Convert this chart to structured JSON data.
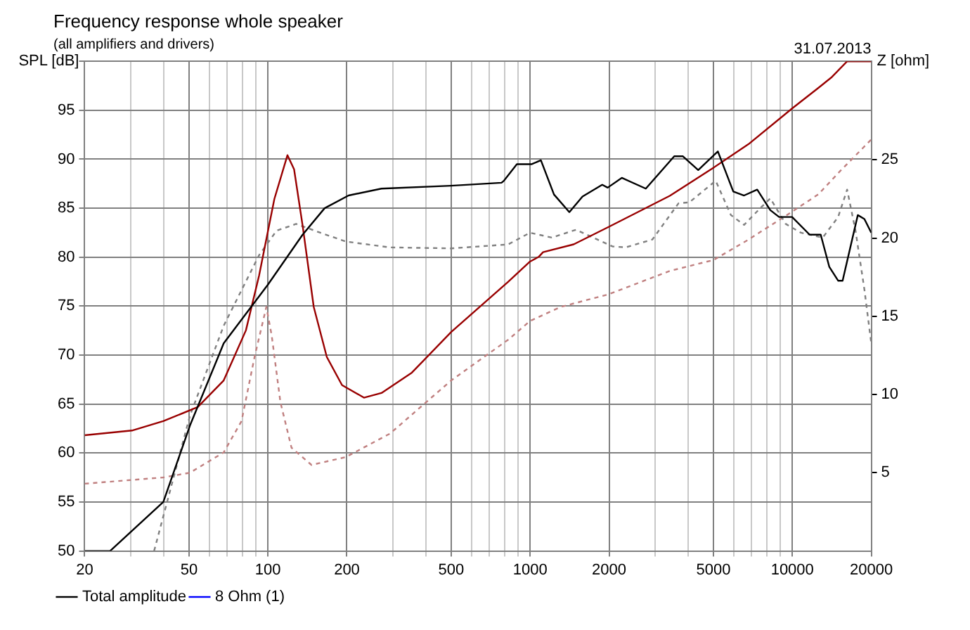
{
  "chart_data": {
    "type": "line",
    "title": "Frequency response whole speaker",
    "subtitle": "(all amplifiers and drivers)",
    "ylabel": "SPL [dB]",
    "y2label": "Z [ohm]",
    "annotations": [
      "31.07.2013"
    ],
    "xlim": [
      20,
      20000
    ],
    "xticks": [
      20,
      {
        "value": 30,
        "label": null
      },
      {
        "value": 40,
        "label": null
      },
      50,
      {
        "value": 60,
        "label": null
      },
      {
        "value": 70,
        "label": null
      },
      {
        "value": 80,
        "label": null
      },
      {
        "value": 90,
        "label": null
      },
      100,
      200,
      {
        "value": 300,
        "label": null
      },
      {
        "value": 400,
        "label": null
      },
      500,
      {
        "value": 600,
        "label": null
      },
      {
        "value": 700,
        "label": null
      },
      {
        "value": 800,
        "label": null
      },
      {
        "value": 900,
        "label": null
      },
      1000,
      2000,
      {
        "value": 3000,
        "label": null
      },
      {
        "value": 4000,
        "label": null
      },
      5000,
      {
        "value": 6000,
        "label": null
      },
      {
        "value": 7000,
        "label": null
      },
      {
        "value": 8000,
        "label": null
      },
      {
        "value": 9000,
        "label": null
      },
      10000,
      20000
    ],
    "ylim": [
      50,
      100
    ],
    "yticks": [
      50,
      55,
      60,
      65,
      70,
      75,
      80,
      85,
      90,
      95,
      {
        "value": 100,
        "label": null
      }
    ],
    "y2lim": [
      0,
      31.3
    ],
    "y2ticks": [
      5,
      10,
      15,
      20,
      25
    ],
    "log": "x",
    "grid": true,
    "legend": "bottom left",
    "marker": "none",
    "series": [
      {
        "name": "Total amplitude",
        "color": "#000000",
        "x": [
          20,
          25,
          39.9,
          50.4,
          67.8,
          100,
          135.6,
          164.5,
          203,
          271,
          500,
          778,
          794,
          890,
          1015,
          1099,
          1233,
          1411,
          1584,
          1883,
          1976,
          2237,
          2761,
          3545,
          3826,
          4376,
          5200,
          5953,
          6546,
          7345,
          8241,
          8903,
          9981,
          11640,
          12830,
          13840,
          14950,
          15550,
          17770,
          18830,
          20000
        ],
        "values": [
          50,
          50,
          55.0,
          62.8,
          71.2,
          77.2,
          82.3,
          85.0,
          86.3,
          87.0,
          87.3,
          87.6,
          87.8,
          89.5,
          89.5,
          89.9,
          86.4,
          84.6,
          86.2,
          87.4,
          87.1,
          88.1,
          87.0,
          90.3,
          90.3,
          88.9,
          90.8,
          86.7,
          86.3,
          86.9,
          84.8,
          84.1,
          84.1,
          82.3,
          82.3,
          79.0,
          77.6,
          77.6,
          84.3,
          83.9,
          82.5
        ]
      },
      {
        "name": "8 Ohm (1)",
        "color": "#0000ff"
      },
      {
        "color": "#990000",
        "axis": "y2",
        "x": [
          20,
          30.3,
          39.9,
          54,
          67.8,
          82.4,
          92.5,
          105.8,
          118.7,
          125.8,
          135.6,
          149.5,
          167.7,
          191.7,
          232.3,
          271,
          354,
          500,
          824,
          999,
          1078,
          1120,
          1466,
          1986,
          3409,
          5006,
          6802,
          10000,
          12570,
          14160,
          16180,
          20000
        ],
        "values": [
          7.4,
          7.7,
          8.3,
          9.2,
          10.9,
          14.1,
          17.6,
          22.5,
          25.3,
          24.4,
          20.8,
          15.6,
          12.4,
          10.6,
          9.8,
          10.1,
          11.4,
          14.0,
          17.2,
          18.5,
          18.8,
          19.1,
          19.6,
          20.7,
          22.7,
          24.5,
          26.0,
          28.3,
          29.6,
          30.3,
          31.3,
          31.3
        ]
      },
      {
        "color": "#808080",
        "line_style": "dashed",
        "x": [
          36.8,
          50.4,
          67.8,
          92.5,
          107.8,
          128.1,
          158.3,
          198,
          292,
          500,
          824,
          999,
          1209,
          1495,
          2060,
          2311,
          2924,
          3681,
          4047,
          5101,
          5831,
          6546,
          7540,
          8241,
          9432,
          10780,
          13060,
          14950,
          16180,
          17420,
          18830,
          20000
        ],
        "values": [
          50,
          63.8,
          73.0,
          80.2,
          82.7,
          83.4,
          82.5,
          81.6,
          81.0,
          80.9,
          81.3,
          82.5,
          82.0,
          82.8,
          81.1,
          81.0,
          81.8,
          85.5,
          85.6,
          87.8,
          84.3,
          83.3,
          85.0,
          86.0,
          83.4,
          82.5,
          82.0,
          84.1,
          86.9,
          82.7,
          76.7,
          71.2
        ]
      },
      {
        "color": "#c08080",
        "line_style": "dashed",
        "axis": "y2",
        "x": [
          20,
          39.9,
          50.4,
          67.8,
          79.3,
          88.9,
          98.6,
          103.3,
          111.6,
          123,
          146.6,
          198,
          292,
          500,
          824,
          999,
          1306,
          1986,
          3409,
          5006,
          6802,
          10000,
          12570,
          15250,
          20000
        ],
        "values": [
          4.3,
          4.7,
          5.0,
          6.3,
          8.3,
          12.4,
          15.6,
          13.8,
          9.5,
          6.6,
          5.5,
          6.0,
          7.5,
          10.9,
          13.5,
          14.7,
          15.6,
          16.4,
          17.9,
          18.6,
          19.9,
          21.7,
          22.8,
          24.3,
          26.3
        ]
      }
    ]
  }
}
